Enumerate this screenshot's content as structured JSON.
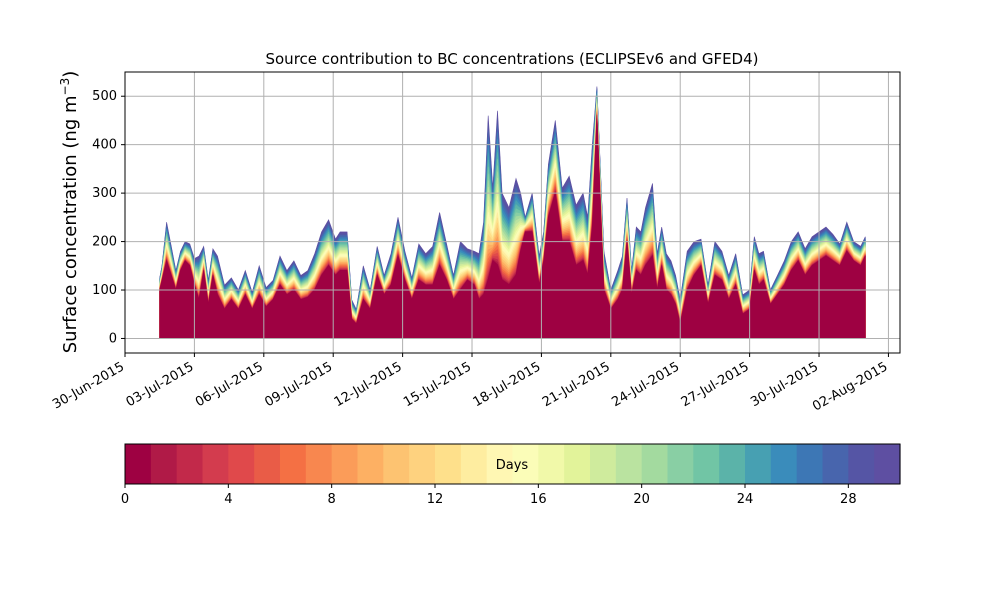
{
  "chart_data": {
    "type": "area",
    "title": "Source contribution to BC concentrations (ECLIPSEv6 and GFED4)",
    "ylabel": "Surface concentration (ng m",
    "ylabel_sup": "−3",
    "ylabel_close": ")",
    "xlabel": "",
    "ylim": [
      -30,
      550
    ],
    "yticks": [
      0,
      100,
      200,
      300,
      400,
      500
    ],
    "xlim": [
      0,
      33.5
    ],
    "xticks": [
      {
        "day": 0,
        "label": "30-Jun-2015"
      },
      {
        "day": 3,
        "label": "03-Jul-2015"
      },
      {
        "day": 6,
        "label": "06-Jul-2015"
      },
      {
        "day": 9,
        "label": "09-Jul-2015"
      },
      {
        "day": 12,
        "label": "12-Jul-2015"
      },
      {
        "day": 15,
        "label": "15-Jul-2015"
      },
      {
        "day": 18,
        "label": "18-Jul-2015"
      },
      {
        "day": 21,
        "label": "21-Jul-2015"
      },
      {
        "day": 24,
        "label": "24-Jul-2015"
      },
      {
        "day": 27,
        "label": "27-Jul-2015"
      },
      {
        "day": 30,
        "label": "30-Jul-2015"
      },
      {
        "day": 33,
        "label": "02-Aug-2015"
      }
    ],
    "grid": true,
    "x_days": [
      1.5,
      1.6,
      1.8,
      2.0,
      2.2,
      2.4,
      2.6,
      2.8,
      3.0,
      3.2,
      3.4,
      3.6,
      3.8,
      4.0,
      4.3,
      4.6,
      4.9,
      5.2,
      5.5,
      5.8,
      6.1,
      6.4,
      6.7,
      7.0,
      7.3,
      7.6,
      7.9,
      8.2,
      8.5,
      8.8,
      9.1,
      9.3,
      9.6,
      9.8,
      10.0,
      10.3,
      10.6,
      10.9,
      11.2,
      11.5,
      11.8,
      12.1,
      12.4,
      12.7,
      13.0,
      13.3,
      13.6,
      13.9,
      14.2,
      14.5,
      14.8,
      15.1,
      15.3,
      15.5,
      15.7,
      15.9,
      16.1,
      16.3,
      16.6,
      16.9,
      17.1,
      17.3,
      17.6,
      17.9,
      18.1,
      18.3,
      18.6,
      18.9,
      19.2,
      19.5,
      19.8,
      20.0,
      20.2,
      20.4,
      20.7,
      21.0,
      21.3,
      21.5,
      21.7,
      21.9,
      22.1,
      22.3,
      22.5,
      22.8,
      23.0,
      23.2,
      23.4,
      23.6,
      23.8,
      24.0,
      24.3,
      24.6,
      24.9,
      25.2,
      25.5,
      25.8,
      26.1,
      26.4,
      26.7,
      27.0,
      27.2,
      27.4,
      27.6,
      27.9,
      28.2,
      28.5,
      28.8,
      29.1,
      29.4,
      29.7,
      30.0,
      30.3,
      30.6,
      30.9,
      31.2,
      31.5,
      31.8,
      32.0
    ],
    "total": [
      125,
      150,
      240,
      190,
      140,
      180,
      200,
      195,
      165,
      170,
      190,
      120,
      185,
      170,
      110,
      125,
      100,
      140,
      95,
      150,
      105,
      120,
      170,
      140,
      160,
      130,
      140,
      175,
      220,
      245,
      205,
      220,
      220,
      80,
      60,
      150,
      100,
      190,
      130,
      175,
      250,
      180,
      125,
      195,
      175,
      190,
      260,
      195,
      130,
      200,
      185,
      180,
      175,
      240,
      460,
      310,
      470,
      300,
      270,
      330,
      300,
      250,
      300,
      170,
      220,
      360,
      450,
      310,
      335,
      275,
      300,
      250,
      400,
      520,
      180,
      100,
      140,
      170,
      290,
      140,
      230,
      220,
      270,
      320,
      175,
      230,
      175,
      160,
      130,
      80,
      180,
      200,
      205,
      110,
      200,
      180,
      130,
      175,
      90,
      100,
      210,
      175,
      180,
      100,
      130,
      160,
      200,
      220,
      185,
      210,
      220,
      230,
      215,
      195,
      240,
      200,
      190,
      210
    ],
    "base_day0": [
      100,
      120,
      160,
      130,
      100,
      140,
      160,
      150,
      110,
      80,
      140,
      70,
      130,
      90,
      60,
      80,
      60,
      90,
      60,
      90,
      65,
      80,
      110,
      90,
      100,
      80,
      85,
      100,
      130,
      150,
      130,
      140,
      140,
      40,
      30,
      80,
      60,
      130,
      90,
      110,
      170,
      120,
      80,
      120,
      110,
      110,
      150,
      120,
      80,
      100,
      120,
      110,
      80,
      90,
      120,
      160,
      150,
      120,
      110,
      130,
      180,
      220,
      220,
      110,
      160,
      250,
      300,
      200,
      200,
      150,
      160,
      130,
      230,
      460,
      100,
      60,
      80,
      100,
      200,
      90,
      140,
      130,
      150,
      170,
      100,
      150,
      100,
      90,
      70,
      30,
      100,
      130,
      150,
      70,
      130,
      120,
      80,
      110,
      50,
      60,
      140,
      110,
      120,
      70,
      90,
      110,
      140,
      160,
      130,
      150,
      160,
      170,
      160,
      150,
      180,
      160,
      150,
      170
    ],
    "colorbar": {
      "label": "Days",
      "min": 0,
      "max": 30,
      "levels": 30,
      "ticks": [
        0,
        4,
        8,
        12,
        16,
        20,
        24,
        28
      ],
      "colors": [
        "#9e0142",
        "#b01a47",
        "#c2294a",
        "#d33c4e",
        "#e0494b",
        "#e95c47",
        "#f47044",
        "#f8874f",
        "#fb9c59",
        "#fdb063",
        "#fdc371",
        "#fed27f",
        "#fee08b",
        "#feeda0",
        "#fff7b3",
        "#fbfdb8",
        "#f1f9a9",
        "#e2f39a",
        "#cfeb9d",
        "#bae3a0",
        "#a3da9f",
        "#89cfa4",
        "#71c5a5",
        "#5bb3a9",
        "#47a0b2",
        "#3a8cbb",
        "#3d77b5",
        "#4865ad",
        "#5555a5",
        "#5e4fa2"
      ]
    }
  }
}
